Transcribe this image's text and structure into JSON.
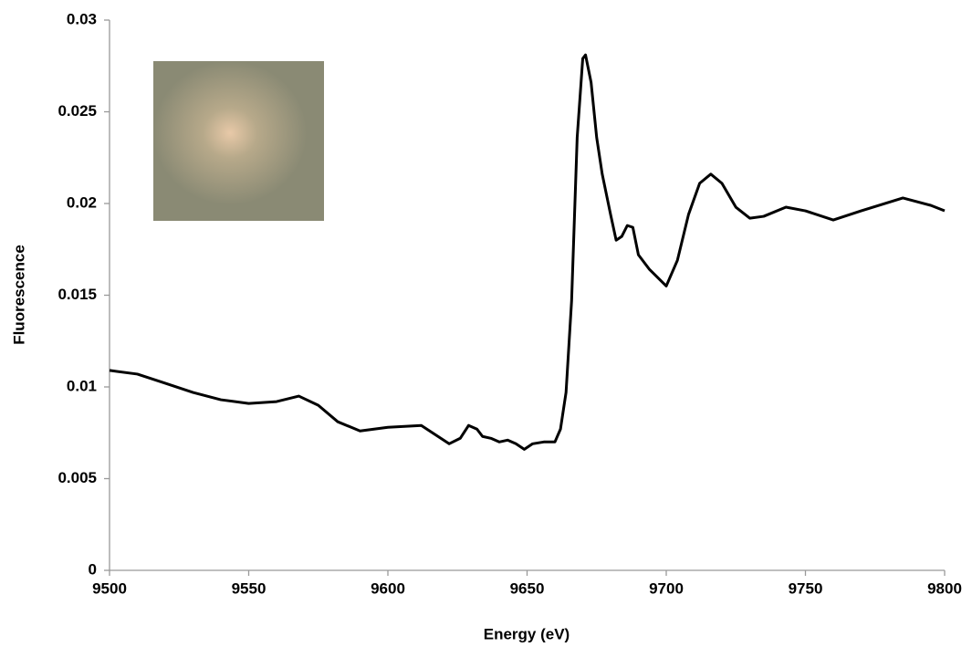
{
  "chart_data": {
    "type": "line",
    "xlabel": "Energy (eV)",
    "ylabel": "Fluorescence",
    "x": [
      9500,
      9510,
      9520,
      9530,
      9540,
      9550,
      9560,
      9568,
      9575,
      9582,
      9590,
      9600,
      9612,
      9618,
      9622,
      9626,
      9629,
      9632,
      9634,
      9637,
      9640,
      9643,
      9646,
      9649,
      9652,
      9656,
      9660,
      9662,
      9664,
      9666,
      9668,
      9670,
      9671,
      9673,
      9675,
      9677,
      9680,
      9682,
      9684,
      9686,
      9688,
      9690,
      9694,
      9700,
      9704,
      9708,
      9712,
      9716,
      9720,
      9725,
      9730,
      9735,
      9743,
      9750,
      9760,
      9770,
      9785,
      9795,
      9800
    ],
    "y": [
      0.0109,
      0.0107,
      0.0102,
      0.0097,
      0.0093,
      0.0091,
      0.0092,
      0.0095,
      0.009,
      0.0081,
      0.0076,
      0.0078,
      0.0079,
      0.0073,
      0.0069,
      0.0072,
      0.0079,
      0.0077,
      0.0073,
      0.0072,
      0.007,
      0.0071,
      0.0069,
      0.0066,
      0.0069,
      0.007,
      0.007,
      0.0077,
      0.0097,
      0.0147,
      0.0236,
      0.0279,
      0.0281,
      0.0266,
      0.0236,
      0.0216,
      0.0194,
      0.018,
      0.0182,
      0.0188,
      0.0187,
      0.0172,
      0.0164,
      0.0155,
      0.0169,
      0.0194,
      0.0211,
      0.0216,
      0.0211,
      0.0198,
      0.0192,
      0.0193,
      0.0198,
      0.0196,
      0.0191,
      0.0196,
      0.0203,
      0.0199,
      0.0196
    ],
    "color": "#000000",
    "xlim": [
      9500,
      9800
    ],
    "xticks": [
      9500,
      9550,
      9600,
      9650,
      9700,
      9750,
      9800
    ],
    "ylim": [
      0,
      0.03
    ],
    "yticks": [
      0,
      0.005,
      0.01,
      0.015,
      0.02,
      0.025,
      0.03
    ]
  }
}
